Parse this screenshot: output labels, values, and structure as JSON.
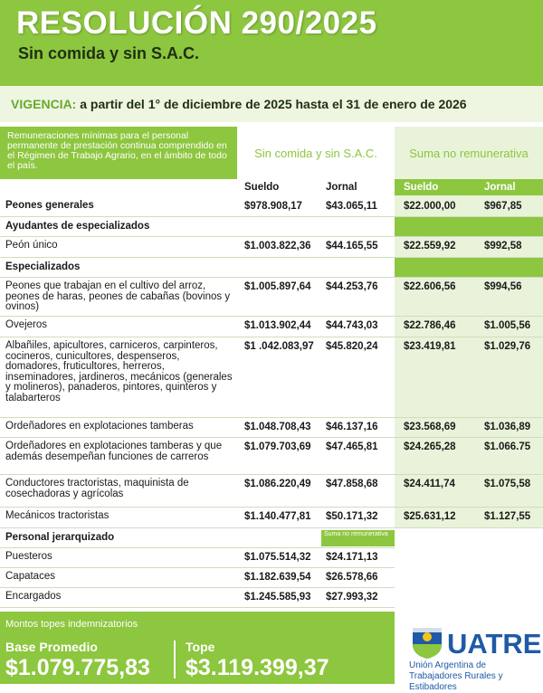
{
  "header": {
    "title": "RESOLUCIÓN 290/2025",
    "subtitle": "Sin comida y sin S.A.C."
  },
  "vigencia": {
    "label": "VIGENCIA:",
    "text": "a partir del 1° de diciembre de 2025 hasta el 31 de enero de 2026"
  },
  "table": {
    "intro": "Remuneraciones mínimas para el personal permanente de prestación continua comprendido en el Régimen de Trabajo Agrario, en el ámbito de todo el país.",
    "groups": [
      "Sin comida y sin S.A.C.",
      "Suma no remunerativa"
    ],
    "columns": [
      "Sueldo",
      "Jornal",
      "Sueldo",
      "Jornal"
    ],
    "rows": [
      {
        "label": "Peones generales",
        "values": [
          "$978.908,17",
          "$43.065,11",
          "$22.000,00",
          "$967,85"
        ]
      },
      {
        "section": "Ayudantes de especializados"
      },
      {
        "label": "Peón único",
        "values": [
          "$1.003.822,36",
          "$44.165,55",
          "$22.559,92",
          "$992,58"
        ]
      },
      {
        "section": "Especializados"
      },
      {
        "label": "Peones que trabajan en el cultivo del arroz, peones de haras, peones de cabañas (bovinos y ovinos)",
        "values": [
          "$1.005.897,64",
          "$44.253,76",
          "$22.606,56",
          "$994,56"
        ]
      },
      {
        "label": "Ovejeros",
        "values": [
          "$1.013.902,44",
          "$44.743,03",
          "$22.786,46",
          "$1.005,56"
        ]
      },
      {
        "label": "Albañiles, apicultores, carniceros, carpinteros, cocineros, cunicultores, despenseros, domadores, fruticultores, herreros, inseminadores, jardineros, mecánicos (generales y molineros), panaderos, pintores, quinteros y talabarteros",
        "values": [
          "$1 .042.083,97",
          "$45.820,24",
          "$23.419,81",
          "$1.029,76"
        ]
      },
      {
        "label": "Ordeñadores en explotaciones tamberas",
        "values": [
          "$1.048.708,43",
          "$46.137,16",
          "$23.568,69",
          "$1.036,89"
        ]
      },
      {
        "label": "Ordeñadores en explotaciones tamberas y que además desempeñan funciones de carreros",
        "values": [
          "$1.079.703,69",
          "$47.465,81",
          "$24.265,28",
          "$1.066.75"
        ]
      },
      {
        "label": "Conductores tractoristas, maquinista de cosechadoras y agrícolas",
        "values": [
          "$1.086.220,49",
          "$47.858,68",
          "$24.411,74",
          "$1.075,58"
        ]
      },
      {
        "label": "Mecánicos tractoristas",
        "values": [
          "$1.140.477,81",
          "$50.171,32",
          "$25.631,12",
          "$1.127,55"
        ]
      },
      {
        "section": "Personal jerarquizado",
        "note": "Suma no remunerativa"
      },
      {
        "label": "Puesteros",
        "values": [
          "$1.075.514,32",
          "$24.171,13"
        ]
      },
      {
        "label": "Capataces",
        "values": [
          "$1.182.639,54",
          "$26.578,66"
        ]
      },
      {
        "label": "Encargados",
        "values": [
          "$1.245.585,93",
          "$27.993,32"
        ]
      }
    ]
  },
  "footer": {
    "heading": "Montos topes indemnizatorios",
    "items": [
      {
        "label": "Base Promedio",
        "value": "$1.079.775,83"
      },
      {
        "label": "Tope",
        "value": "$3.119.399,37"
      }
    ]
  },
  "logo": {
    "name": "UATRE",
    "caption": "Unión Argentina de Trabajadores Rurales y Estibadores"
  }
}
